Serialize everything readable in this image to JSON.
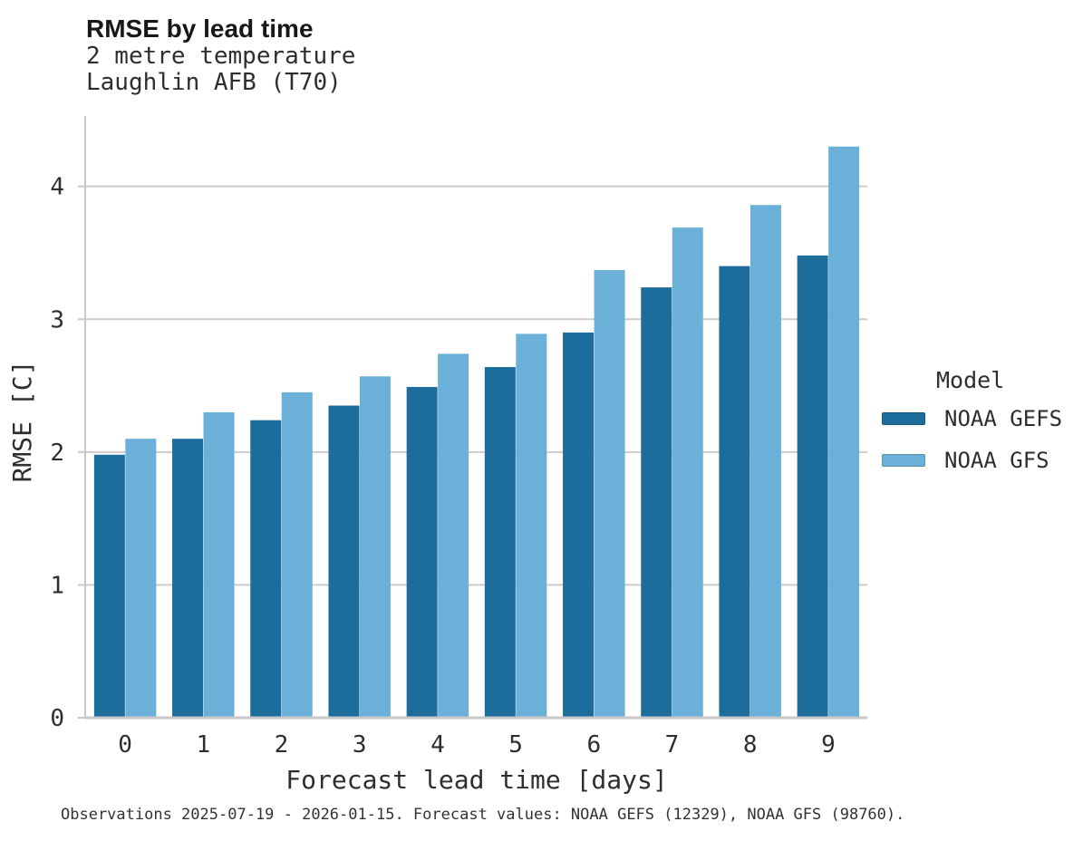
{
  "title": "RMSE by lead time",
  "subtitle_lines": [
    "2 metre temperature",
    "Laughlin AFB (T70)"
  ],
  "caption": "Observations 2025-07-19 - 2026-01-15. Forecast values: NOAA GEFS (12329), NOAA GFS (98760).",
  "legend": {
    "title": "Model",
    "items": [
      {
        "label": "NOAA GEFS",
        "color": "#1c6d9c"
      },
      {
        "label": "NOAA GFS",
        "color": "#6bb0d8"
      }
    ]
  },
  "colors": {
    "bar_dark": "#1c6d9c",
    "bar_light": "#6bb0d8",
    "gridline": "#cccccc",
    "axis": "#c8c8c8",
    "tick_text": "#2e2e2e",
    "background": "#ffffff"
  },
  "chart_data": {
    "type": "bar",
    "title": "RMSE by lead time",
    "subtitle": "2 metre temperature — Laughlin AFB (T70)",
    "categories": [
      "0",
      "1",
      "2",
      "3",
      "4",
      "5",
      "6",
      "7",
      "8",
      "9"
    ],
    "series": [
      {
        "name": "NOAA GEFS",
        "color": "#1c6d9c",
        "values": [
          1.98,
          2.1,
          2.24,
          2.35,
          2.49,
          2.64,
          2.9,
          3.24,
          3.4,
          3.48
        ]
      },
      {
        "name": "NOAA GFS",
        "color": "#6bb0d8",
        "values": [
          2.1,
          2.3,
          2.45,
          2.57,
          2.74,
          2.89,
          3.37,
          3.69,
          3.86,
          4.3
        ]
      }
    ],
    "xlabel": "Forecast lead time [days]",
    "ylabel": "RMSE [C]",
    "ylim": [
      0,
      4.53
    ],
    "yticks": [
      0,
      1,
      2,
      3,
      4
    ],
    "grid": true,
    "legend_position": "right-of-plot"
  }
}
